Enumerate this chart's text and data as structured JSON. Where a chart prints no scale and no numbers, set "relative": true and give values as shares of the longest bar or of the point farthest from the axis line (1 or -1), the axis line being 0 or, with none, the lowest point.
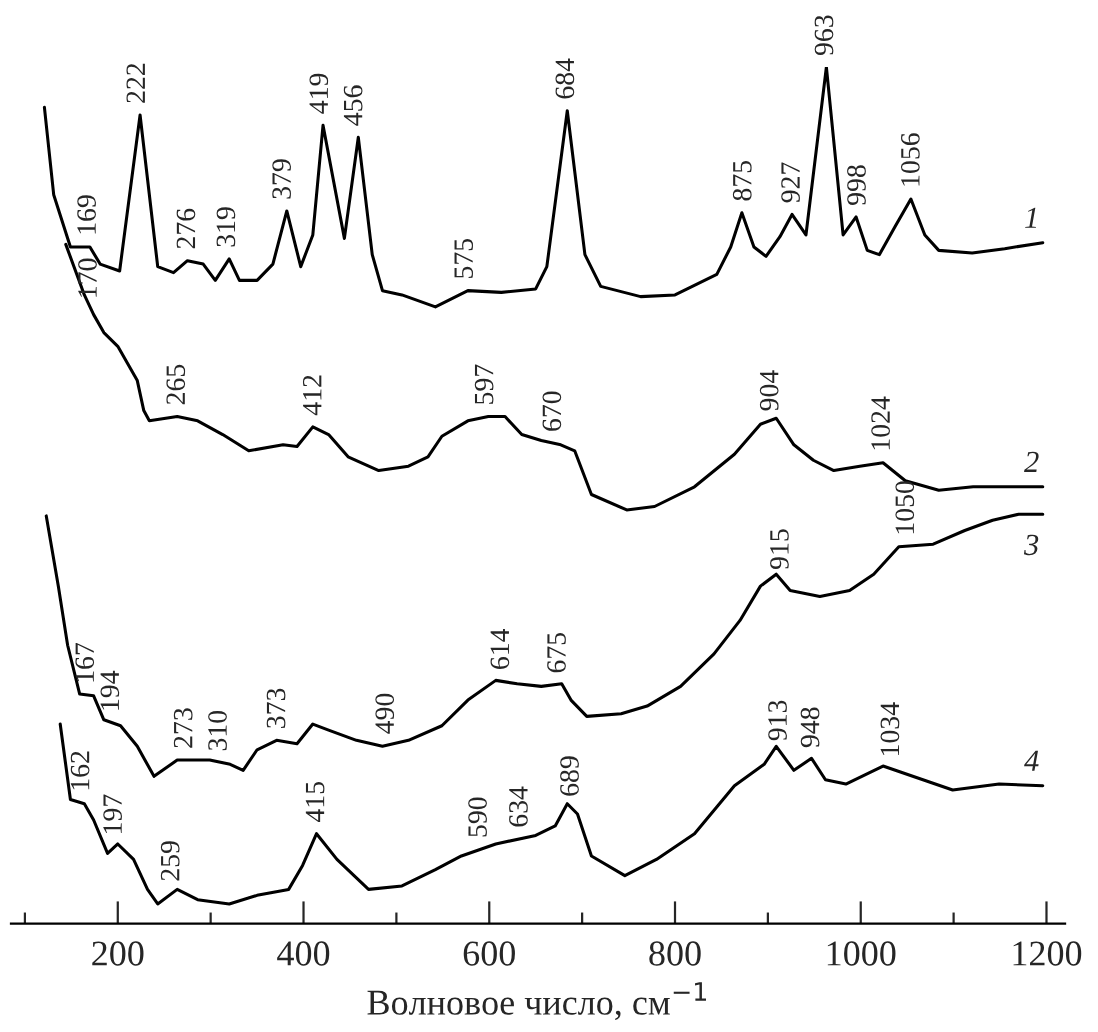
{
  "chart_data": {
    "type": "line",
    "relative": true,
    "xlabel": "Волновое число, см$^{−1}$",
    "xlim": [
      85,
      1220
    ],
    "xticks": [
      {
        "value": 100,
        "label": null
      },
      200,
      {
        "value": 300,
        "label": null
      },
      400,
      {
        "value": 500,
        "label": null
      },
      600,
      {
        "value": 700,
        "label": null
      },
      800,
      {
        "value": 900,
        "label": null
      },
      1000,
      {
        "value": 1100,
        "label": null
      },
      1200
    ],
    "grid": false,
    "legend": false,
    "marker": "none",
    "line_style": "solid",
    "series": [
      {
        "name": "1",
        "color": "#000000",
        "x": [
          121,
          131,
          149,
          170,
          181,
          202,
          224,
          243,
          260,
          275,
          292,
          305,
          320,
          331,
          350,
          367,
          382,
          397,
          410,
          421,
          444,
          459,
          474,
          485,
          506,
          542,
          577,
          613,
          650,
          662,
          684,
          703,
          720,
          763,
          800,
          845,
          860,
          872,
          885,
          898,
          913,
          926,
          941,
          963,
          981,
          995,
          1007,
          1020,
          1037,
          1054,
          1069,
          1084,
          1120,
          1155,
          1196
        ],
        "values": [
          0.953,
          0.851,
          0.79,
          0.79,
          0.77,
          0.762,
          0.944,
          0.767,
          0.76,
          0.774,
          0.77,
          0.751,
          0.776,
          0.751,
          0.751,
          0.77,
          0.832,
          0.767,
          0.804,
          0.932,
          0.8,
          0.918,
          0.781,
          0.739,
          0.734,
          0.72,
          0.739,
          0.737,
          0.741,
          0.767,
          0.949,
          0.781,
          0.744,
          0.732,
          0.734,
          0.758,
          0.79,
          0.83,
          0.79,
          0.779,
          0.802,
          0.828,
          0.804,
          1.0,
          0.804,
          0.825,
          0.786,
          0.781,
          0.814,
          0.846,
          0.804,
          0.786,
          0.783,
          0.788,
          0.795
        ]
      },
      {
        "name": "2",
        "color": "#000000",
        "x": [
          144,
          164,
          174,
          185,
          200,
          221,
          228,
          234,
          264,
          286,
          313,
          341,
          378,
          393,
          410,
          427,
          448,
          481,
          513,
          534,
          549,
          577,
          599,
          617,
          635,
          656,
          677,
          692,
          710,
          748,
          778,
          821,
          864,
          892,
          909,
          928,
          949,
          971,
          999,
          1024,
          1048,
          1084,
          1121,
          1155,
          1196
        ],
        "values": [
          0.793,
          0.734,
          0.711,
          0.69,
          0.674,
          0.634,
          0.599,
          0.587,
          0.592,
          0.587,
          0.571,
          0.552,
          0.559,
          0.557,
          0.58,
          0.571,
          0.545,
          0.529,
          0.534,
          0.545,
          0.569,
          0.587,
          0.592,
          0.592,
          0.571,
          0.564,
          0.559,
          0.552,
          0.501,
          0.483,
          0.487,
          0.51,
          0.548,
          0.583,
          0.59,
          0.559,
          0.541,
          0.529,
          0.534,
          0.538,
          0.517,
          0.506,
          0.51,
          0.51,
          0.51
        ]
      },
      {
        "name": "3",
        "color": "#000000",
        "x": [
          123,
          136,
          146,
          159,
          174,
          185,
          203,
          221,
          239,
          264,
          299,
          321,
          335,
          350,
          371,
          393,
          410,
          427,
          457,
          485,
          513,
          549,
          577,
          607,
          630,
          656,
          678,
          688,
          705,
          742,
          770,
          806,
          842,
          870,
          892,
          909,
          924,
          956,
          988,
          1014,
          1041,
          1078,
          1112,
          1142,
          1170,
          1196
        ],
        "values": [
          0.476,
          0.394,
          0.325,
          0.268,
          0.266,
          0.238,
          0.231,
          0.207,
          0.172,
          0.191,
          0.191,
          0.186,
          0.179,
          0.203,
          0.214,
          0.21,
          0.233,
          0.226,
          0.214,
          0.207,
          0.214,
          0.231,
          0.261,
          0.284,
          0.28,
          0.277,
          0.28,
          0.261,
          0.242,
          0.245,
          0.254,
          0.277,
          0.315,
          0.354,
          0.394,
          0.408,
          0.389,
          0.382,
          0.389,
          0.408,
          0.44,
          0.443,
          0.459,
          0.471,
          0.478,
          0.478
        ]
      },
      {
        "name": "4",
        "color": "#000000",
        "x": [
          138,
          149,
          164,
          174,
          189,
          200,
          217,
          232,
          243,
          264,
          286,
          320,
          350,
          384,
          399,
          414,
          436,
          470,
          506,
          542,
          570,
          607,
          650,
          671,
          684,
          695,
          710,
          746,
          780,
          821,
          864,
          896,
          909,
          928,
          947,
          962,
          984,
          1024,
          1056,
          1099,
          1149,
          1196
        ],
        "values": [
          0.233,
          0.145,
          0.14,
          0.121,
          0.082,
          0.093,
          0.075,
          0.04,
          0.023,
          0.04,
          0.028,
          0.023,
          0.033,
          0.04,
          0.068,
          0.105,
          0.075,
          0.04,
          0.044,
          0.063,
          0.079,
          0.093,
          0.103,
          0.114,
          0.14,
          0.128,
          0.079,
          0.056,
          0.075,
          0.105,
          0.161,
          0.186,
          0.207,
          0.179,
          0.193,
          0.168,
          0.163,
          0.184,
          0.172,
          0.156,
          0.163,
          0.161
        ]
      }
    ],
    "annotations": [
      {
        "text": "169",
        "x": 169,
        "y": 0.79
      },
      {
        "text": "222",
        "x": 222,
        "y": 0.944
      },
      {
        "text": "276",
        "x": 276,
        "y": 0.774
      },
      {
        "text": "319",
        "x": 319,
        "y": 0.776
      },
      {
        "text": "379",
        "x": 379,
        "y": 0.832
      },
      {
        "text": "419",
        "x": 419,
        "y": 0.932
      },
      {
        "text": "456",
        "x": 456,
        "y": 0.918
      },
      {
        "text": "575",
        "x": 575,
        "y": 0.739
      },
      {
        "text": "684",
        "x": 684,
        "y": 0.949
      },
      {
        "text": "875",
        "x": 875,
        "y": 0.83
      },
      {
        "text": "927",
        "x": 927,
        "y": 0.828
      },
      {
        "text": "963",
        "x": 963,
        "y": 1.0
      },
      {
        "text": "998",
        "x": 998,
        "y": 0.825
      },
      {
        "text": "1056",
        "x": 1056,
        "y": 0.846
      },
      {
        "text": "170",
        "x": 170,
        "y": 0.716
      },
      {
        "text": "265",
        "x": 265,
        "y": 0.592
      },
      {
        "text": "412",
        "x": 412,
        "y": 0.58
      },
      {
        "text": "597",
        "x": 597,
        "y": 0.592
      },
      {
        "text": "670",
        "x": 670,
        "y": 0.561
      },
      {
        "text": "904",
        "x": 904,
        "y": 0.585
      },
      {
        "text": "1024",
        "x": 1024,
        "y": 0.538
      },
      {
        "text": "167",
        "x": 167,
        "y": 0.267
      },
      {
        "text": "194",
        "x": 194,
        "y": 0.234
      },
      {
        "text": "273",
        "x": 273,
        "y": 0.191
      },
      {
        "text": "310",
        "x": 310,
        "y": 0.188
      },
      {
        "text": "373",
        "x": 373,
        "y": 0.214
      },
      {
        "text": "490",
        "x": 490,
        "y": 0.208
      },
      {
        "text": "614",
        "x": 614,
        "y": 0.283
      },
      {
        "text": "675",
        "x": 675,
        "y": 0.279
      },
      {
        "text": "915",
        "x": 915,
        "y": 0.4
      },
      {
        "text": "1050",
        "x": 1050,
        "y": 0.44
      },
      {
        "text": "162",
        "x": 162,
        "y": 0.141
      },
      {
        "text": "197",
        "x": 197,
        "y": 0.09
      },
      {
        "text": "259",
        "x": 259,
        "y": 0.036
      },
      {
        "text": "415",
        "x": 415,
        "y": 0.105
      },
      {
        "text": "590",
        "x": 590,
        "y": 0.087
      },
      {
        "text": "634",
        "x": 634,
        "y": 0.099
      },
      {
        "text": "689",
        "x": 689,
        "y": 0.135
      },
      {
        "text": "913",
        "x": 913,
        "y": 0.2
      },
      {
        "text": "948",
        "x": 948,
        "y": 0.192
      },
      {
        "text": "1034",
        "x": 1034,
        "y": 0.181
      }
    ]
  }
}
